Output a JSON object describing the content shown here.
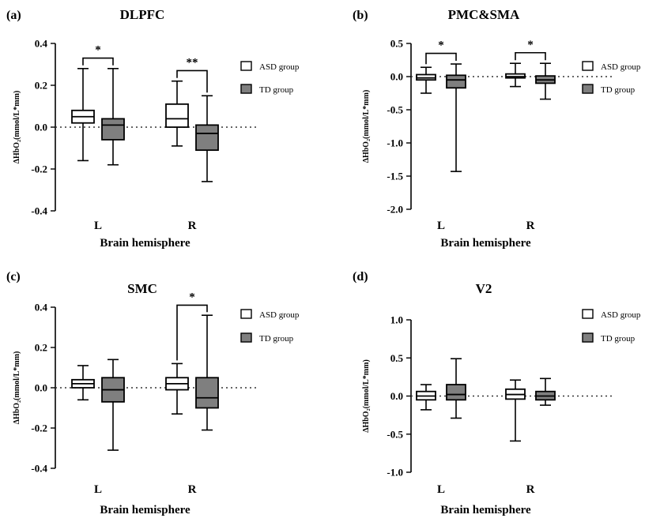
{
  "colors": {
    "asd": "#ffffff",
    "td": "#7f7f7f",
    "stroke": "#000000"
  },
  "chart_data": [
    {
      "type": "box",
      "panel_label": "(a)",
      "title": "DLPFC",
      "xlabel": "Brain hemisphere",
      "ylabel": "ΔHbO₂(mmol/L*mm)",
      "categories": [
        "L",
        "R"
      ],
      "ylim": [
        -0.4,
        0.4
      ],
      "ticks": [
        "0.4",
        "0.2",
        "0.0",
        "-0.2",
        "-0.4"
      ],
      "tick_values": [
        0.4,
        0.2,
        0.0,
        -0.2,
        -0.4
      ],
      "legend": [
        "ASD group",
        "TD group"
      ],
      "series": [
        {
          "name": "ASD group",
          "boxes": [
            {
              "min": -0.16,
              "q1": 0.02,
              "median": 0.05,
              "q3": 0.08,
              "max": 0.28
            },
            {
              "min": -0.09,
              "q1": 0.0,
              "median": 0.04,
              "q3": 0.11,
              "max": 0.22
            }
          ]
        },
        {
          "name": "TD group",
          "boxes": [
            {
              "min": -0.18,
              "q1": -0.06,
              "median": 0.01,
              "q3": 0.04,
              "max": 0.28
            },
            {
              "min": -0.26,
              "q1": -0.11,
              "median": -0.03,
              "q3": 0.01,
              "max": 0.15
            }
          ]
        }
      ],
      "significance": [
        {
          "category": "L",
          "label": "*",
          "y": 0.33
        },
        {
          "category": "R",
          "label": "**",
          "y": 0.27
        }
      ]
    },
    {
      "type": "box",
      "panel_label": "(b)",
      "title": "PMC&SMA",
      "xlabel": "Brain hemisphere",
      "ylabel": "ΔHbO₂(mmol/L*mm)",
      "categories": [
        "L",
        "R"
      ],
      "ylim": [
        -2.0,
        0.5
      ],
      "ticks": [
        "0.5",
        "0.0",
        "-0.5",
        "-1.0",
        "-1.5",
        "-2.0"
      ],
      "tick_values": [
        0.5,
        0.0,
        -0.5,
        -1.0,
        -1.5,
        -2.0
      ],
      "legend": [
        "ASD group",
        "TD group"
      ],
      "series": [
        {
          "name": "ASD group",
          "boxes": [
            {
              "min": -0.25,
              "q1": -0.05,
              "median": -0.02,
              "q3": 0.03,
              "max": 0.14
            },
            {
              "min": -0.15,
              "q1": -0.02,
              "median": 0.0,
              "q3": 0.04,
              "max": 0.2
            }
          ]
        },
        {
          "name": "TD group",
          "boxes": [
            {
              "min": -1.43,
              "q1": -0.17,
              "median": -0.05,
              "q3": 0.02,
              "max": 0.19
            },
            {
              "min": -0.34,
              "q1": -0.1,
              "median": -0.05,
              "q3": 0.01,
              "max": 0.2
            }
          ]
        }
      ],
      "significance": [
        {
          "category": "L",
          "label": "*",
          "y": 0.35
        },
        {
          "category": "R",
          "label": "*",
          "y": 0.36
        }
      ]
    },
    {
      "type": "box",
      "panel_label": "(c)",
      "title": "SMC",
      "xlabel": "Brain hemisphere",
      "ylabel": "ΔHbO₂(mmol/L*mm)",
      "categories": [
        "L",
        "R"
      ],
      "ylim": [
        -0.4,
        0.4
      ],
      "ticks": [
        "0.4",
        "0.2",
        "0.0",
        "-0.2",
        "-0.4"
      ],
      "tick_values": [
        0.4,
        0.2,
        0.0,
        -0.2,
        -0.4
      ],
      "legend": [
        "ASD group",
        "TD group"
      ],
      "series": [
        {
          "name": "ASD group",
          "boxes": [
            {
              "min": -0.06,
              "q1": 0.0,
              "median": 0.02,
              "q3": 0.04,
              "max": 0.11
            },
            {
              "min": -0.13,
              "q1": -0.01,
              "median": 0.02,
              "q3": 0.05,
              "max": 0.12
            }
          ]
        },
        {
          "name": "TD group",
          "boxes": [
            {
              "min": -0.31,
              "q1": -0.07,
              "median": -0.01,
              "q3": 0.05,
              "max": 0.14
            },
            {
              "min": -0.21,
              "q1": -0.1,
              "median": -0.05,
              "q3": 0.05,
              "max": 0.36
            }
          ]
        }
      ],
      "significance": [
        {
          "category": "R",
          "label": "*",
          "y": 0.41
        }
      ]
    },
    {
      "type": "box",
      "panel_label": "(d)",
      "title": "V2",
      "xlabel": "Brain hemisphere",
      "ylabel": "ΔHbO₂(mmol/L*mm)",
      "categories": [
        "L",
        "R"
      ],
      "ylim": [
        -1.0,
        1.0
      ],
      "ticks": [
        "1.0",
        "0.5",
        "0.0",
        "-0.5",
        "-1.0"
      ],
      "tick_values": [
        1.0,
        0.5,
        0.0,
        -0.5,
        -1.0
      ],
      "legend": [
        "ASD group",
        "TD group"
      ],
      "series": [
        {
          "name": "ASD group",
          "boxes": [
            {
              "min": -0.18,
              "q1": -0.05,
              "median": 0.0,
              "q3": 0.06,
              "max": 0.15
            },
            {
              "min": -0.59,
              "q1": -0.04,
              "median": 0.02,
              "q3": 0.09,
              "max": 0.21
            }
          ]
        },
        {
          "name": "TD group",
          "boxes": [
            {
              "min": -0.29,
              "q1": -0.05,
              "median": 0.02,
              "q3": 0.15,
              "max": 0.49
            },
            {
              "min": -0.12,
              "q1": -0.05,
              "median": 0.0,
              "q3": 0.06,
              "max": 0.23
            }
          ]
        }
      ],
      "significance": []
    }
  ]
}
